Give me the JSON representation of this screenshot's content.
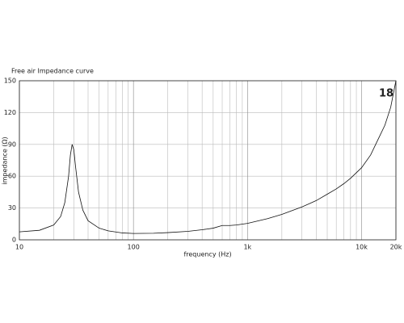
{
  "chart_data": {
    "type": "line",
    "title": "Free air Impedance curve",
    "logo": "18",
    "x_label": "frequency (Hz)",
    "y_label": "impedance (Ω)",
    "xscale": "log",
    "grid": true,
    "color": "#111111",
    "xlim": [
      10,
      20000
    ],
    "ylim": [
      0,
      150
    ],
    "xticks": [
      10,
      100,
      {
        "value": 1000,
        "label": "1k"
      },
      {
        "value": 10000,
        "label": "10k"
      },
      {
        "value": 20000,
        "label": "20k"
      }
    ],
    "xminor": [
      20,
      30,
      40,
      50,
      60,
      70,
      80,
      90,
      200,
      300,
      400,
      500,
      600,
      700,
      800,
      900,
      2000,
      3000,
      4000,
      5000,
      6000,
      7000,
      8000,
      9000
    ],
    "yticks": [
      0,
      30,
      60,
      90,
      120,
      150
    ],
    "x": [
      10,
      15,
      20,
      23,
      25,
      27,
      28,
      29,
      30,
      31,
      33,
      36,
      40,
      50,
      60,
      80,
      100,
      150,
      200,
      300,
      400,
      500,
      600,
      700,
      800,
      1000,
      1500,
      2000,
      3000,
      4000,
      5000,
      6000,
      7000,
      8000,
      10000,
      12000,
      14000,
      16000,
      18000,
      19000,
      20000
    ],
    "values": [
      7.5,
      9,
      14,
      22,
      35,
      60,
      80,
      90,
      85,
      70,
      45,
      28,
      18,
      11,
      8.5,
      6.5,
      6,
      6.2,
      6.8,
      8,
      9.5,
      11,
      13.5,
      13.5,
      14,
      15.5,
      20,
      24,
      31,
      37,
      43,
      48,
      53,
      58,
      68,
      80,
      95,
      108,
      125,
      138,
      150
    ]
  }
}
